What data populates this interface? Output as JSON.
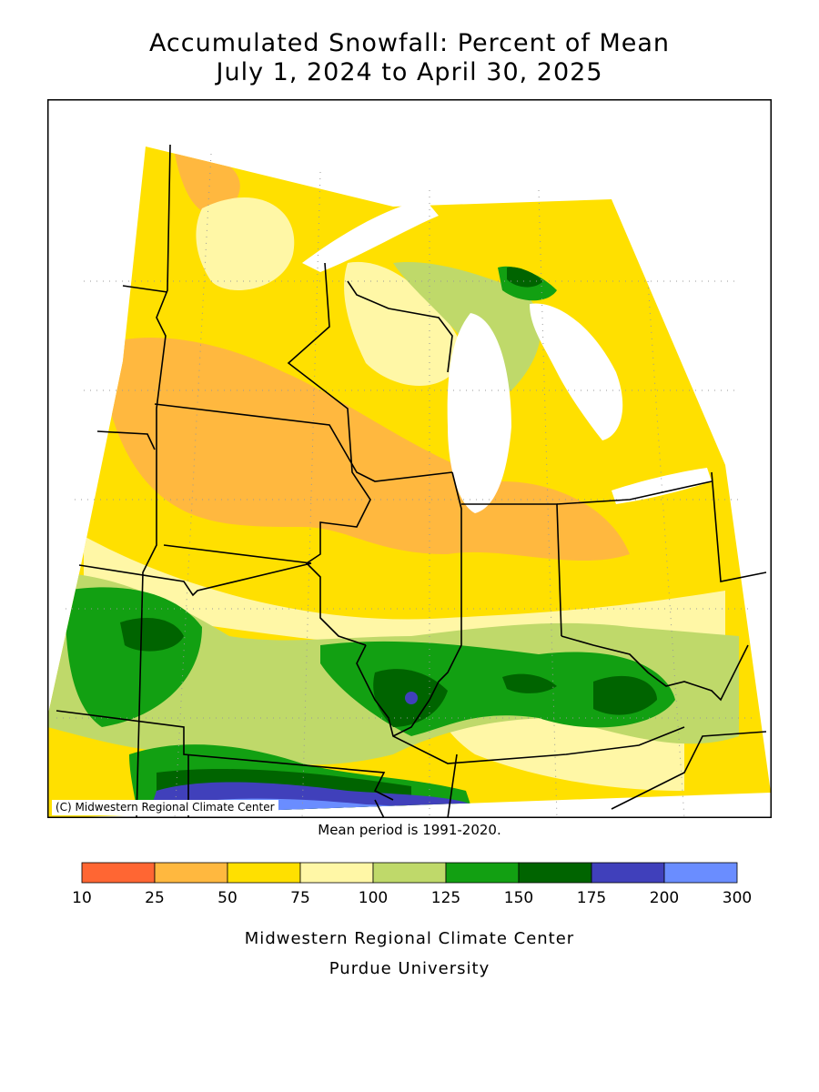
{
  "title_line1": "Accumulated Snowfall: Percent of Mean",
  "title_line2": "July 1, 2024 to April 30, 2025",
  "copyright": "(C) Midwestern Regional Climate Center",
  "mean_period": "Mean period is 1991-2020.",
  "legend": {
    "bins": [
      {
        "from": 10,
        "to": 25,
        "color": "#ff6633"
      },
      {
        "from": 25,
        "to": 50,
        "color": "#ffb83f"
      },
      {
        "from": 50,
        "to": 75,
        "color": "#ffe000"
      },
      {
        "from": 75,
        "to": 100,
        "color": "#fff7a6"
      },
      {
        "from": 100,
        "to": 125,
        "color": "#bfd96a"
      },
      {
        "from": 125,
        "to": 150,
        "color": "#12a012"
      },
      {
        "from": 150,
        "to": 175,
        "color": "#006400"
      },
      {
        "from": 175,
        "to": 200,
        "color": "#4040bb"
      },
      {
        "from": 200,
        "to": 300,
        "color": "#6a8dff"
      }
    ],
    "tick_labels": [
      "10",
      "25",
      "50",
      "75",
      "100",
      "125",
      "150",
      "175",
      "200",
      "300"
    ]
  },
  "footer_line1": "Midwestern Regional Climate Center",
  "footer_line2": "Purdue University"
}
